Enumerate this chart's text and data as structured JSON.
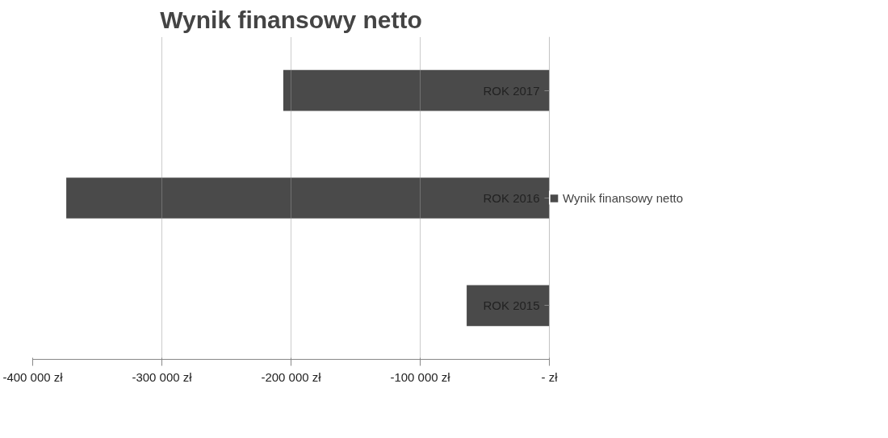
{
  "chart_data": {
    "type": "bar",
    "orientation": "horizontal",
    "title": "Wynik finansowy netto",
    "categories": [
      "ROK 2017",
      "ROK 2016",
      "ROK 2015"
    ],
    "series": [
      {
        "name": "Wynik finansowy netto",
        "color": "#4a4a4a",
        "values": [
          -206000,
          -374000,
          -64000
        ]
      }
    ],
    "xlim": [
      -400000,
      0
    ],
    "xticks": [
      {
        "value": -400000,
        "label": "-400 000 zł"
      },
      {
        "value": -300000,
        "label": "-300 000 zł"
      },
      {
        "value": -200000,
        "label": "-200 000 zł"
      },
      {
        "value": -100000,
        "label": "-100 000 zł"
      },
      {
        "value": 0,
        "label": "- zł"
      }
    ],
    "grid": "x",
    "legend": "right"
  }
}
